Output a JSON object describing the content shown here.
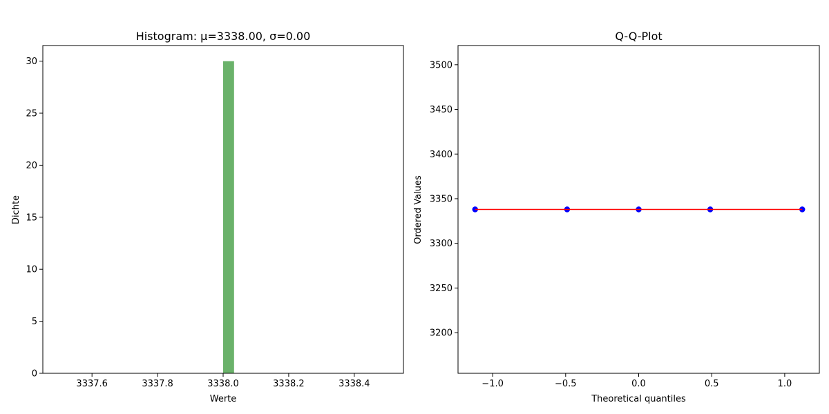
{
  "chart_data": [
    {
      "type": "bar",
      "title": "Histogram: μ=3338.00, σ=0.00",
      "xlabel": "Werte",
      "ylabel": "Dichte",
      "xlim": [
        3337.45,
        3338.55
      ],
      "ylim": [
        0,
        31.5
      ],
      "xticks": [
        "3337.6",
        "3337.8",
        "3338.0",
        "3338.2",
        "3338.4"
      ],
      "yticks": [
        "0",
        "5",
        "10",
        "15",
        "20",
        "25",
        "30"
      ],
      "bars": [
        {
          "x0": 3338.0,
          "x1": 3338.0333,
          "value": 30
        }
      ],
      "bar_color": "#6ab26a",
      "grid": false
    },
    {
      "type": "scatter",
      "title": "Q-Q-Plot",
      "xlabel": "Theoretical quantiles",
      "ylabel": "Ordered Values",
      "xlim": [
        -1.237,
        1.237
      ],
      "ylim": [
        3154.5,
        3521.5
      ],
      "xticks": [
        "−1.0",
        "−0.5",
        "0.0",
        "0.5",
        "1.0"
      ],
      "yticks": [
        "3200",
        "3250",
        "3300",
        "3350",
        "3400",
        "3450",
        "3500"
      ],
      "points": [
        {
          "x": -1.12,
          "y": 3338
        },
        {
          "x": -0.49,
          "y": 3338
        },
        {
          "x": 0.0,
          "y": 3338
        },
        {
          "x": 0.49,
          "y": 3338
        },
        {
          "x": 1.12,
          "y": 3338
        }
      ],
      "fit_line": {
        "x": [
          -1.12,
          1.12
        ],
        "y": [
          3338,
          3338
        ]
      },
      "point_color": "#0000ff",
      "line_color": "#ff0000",
      "grid": false
    }
  ]
}
